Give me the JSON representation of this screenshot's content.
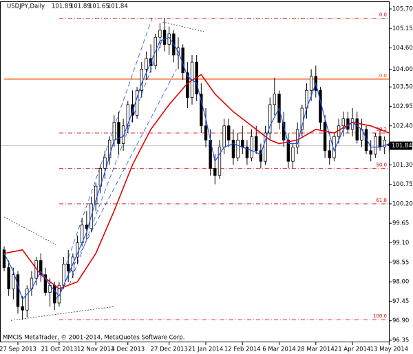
{
  "chart_data": {
    "type": "candlestick",
    "symbol": "USDJPY,Daily",
    "footer": "MMCIS MetaTrader, © 2001-2014, MetaQuotes Software Corp.",
    "xlim": [
      0,
      85
    ],
    "ylim": [
      96.35,
      105.7
    ],
    "xticks": [
      {
        "value": 3,
        "label": "27 Sep 2013"
      },
      {
        "value": 12,
        "label": "21 Oct 2013"
      },
      {
        "value": 20,
        "label": "12 Nov 2013"
      },
      {
        "value": 27,
        "label": "4 Dec 2013"
      },
      {
        "value": 36,
        "label": "27 Dec 2013"
      },
      {
        "value": 44,
        "label": "21 Jan 2014"
      },
      {
        "value": 52,
        "label": "12 Feb 2014"
      },
      {
        "value": 60,
        "label": "6 Mar 2014"
      },
      {
        "value": 68,
        "label": "28 Mar 2014"
      },
      {
        "value": 76,
        "label": "21 Apr 2014"
      },
      {
        "value": 84,
        "label": "13 May 2014"
      }
    ],
    "yticks": [
      {
        "value": 105.7,
        "label": "105.70"
      },
      105.15,
      {
        "value": 104.6,
        "label": "104.60"
      },
      {
        "value": 104,
        "label": "104.00"
      },
      {
        "value": 103.5,
        "label": "103.50"
      },
      102.95,
      {
        "value": 102.4,
        "label": "102.40"
      },
      {
        "value": 101.3,
        "label": "101.30"
      },
      100.75,
      {
        "value": 100.2,
        "label": "100.20"
      },
      99.65,
      {
        "value": 99.1,
        "label": "99.10"
      },
      98.55,
      {
        "value": 98,
        "label": "98.00"
      },
      97.45,
      {
        "value": 96.9,
        "label": "96.90"
      },
      96.35
    ],
    "bull_color": "#ffffff",
    "bear_color": "#000000",
    "candles": [
      [
        98.9,
        99.0,
        98.3,
        98.4
      ],
      [
        98.4,
        98.6,
        97.6,
        97.8
      ],
      [
        97.8,
        98.4,
        97.5,
        98.2
      ],
      [
        98.2,
        98.3,
        97.1,
        97.3
      ],
      [
        97.3,
        97.6,
        96.93,
        97.2
      ],
      [
        97.2,
        97.9,
        97.0,
        97.8
      ],
      [
        97.8,
        98.3,
        97.6,
        98.1
      ],
      [
        98.1,
        98.7,
        97.9,
        98.6
      ],
      [
        98.6,
        98.8,
        98.0,
        98.2
      ],
      [
        98.2,
        98.4,
        97.6,
        97.7
      ],
      [
        97.7,
        98.1,
        97.3,
        97.9
      ],
      [
        97.9,
        98.0,
        97.2,
        97.4
      ],
      [
        97.4,
        98.0,
        97.3,
        97.9
      ],
      [
        97.9,
        98.7,
        97.8,
        98.5
      ],
      [
        98.5,
        98.9,
        98.0,
        98.3
      ],
      [
        98.3,
        98.8,
        98.1,
        98.7
      ],
      [
        98.7,
        99.3,
        98.5,
        99.1
      ],
      [
        99.1,
        99.8,
        99.0,
        99.6
      ],
      [
        99.6,
        100.0,
        99.2,
        99.5
      ],
      [
        99.5,
        100.4,
        99.4,
        100.2
      ],
      [
        100.2,
        100.8,
        100.0,
        100.7
      ],
      [
        100.7,
        101.3,
        100.5,
        101.2
      ],
      [
        101.2,
        101.7,
        100.9,
        101.5
      ],
      [
        101.5,
        102.1,
        101.3,
        102.0
      ],
      [
        102.0,
        102.7,
        101.8,
        102.5
      ],
      [
        102.5,
        102.8,
        101.6,
        101.9
      ],
      [
        101.9,
        102.6,
        101.7,
        102.4
      ],
      [
        102.4,
        103.1,
        102.2,
        103.0
      ],
      [
        103.0,
        103.4,
        102.5,
        102.7
      ],
      [
        102.7,
        103.5,
        102.6,
        103.4
      ],
      [
        103.4,
        104.2,
        103.2,
        104.0
      ],
      [
        104.0,
        104.5,
        103.7,
        104.3
      ],
      [
        104.3,
        104.7,
        103.9,
        104.1
      ],
      [
        104.1,
        105.0,
        104.0,
        104.9
      ],
      [
        104.9,
        105.3,
        104.6,
        105.1
      ],
      [
        105.1,
        105.44,
        104.5,
        104.7
      ],
      [
        104.7,
        105.2,
        104.4,
        105.0
      ],
      [
        105.0,
        105.1,
        104.2,
        104.4
      ],
      [
        104.4,
        104.9,
        104.0,
        104.6
      ],
      [
        104.6,
        104.7,
        103.7,
        103.9
      ],
      [
        103.9,
        104.2,
        102.9,
        103.2
      ],
      [
        103.2,
        104.4,
        103.0,
        104.2
      ],
      [
        104.2,
        104.4,
        103.1,
        103.3
      ],
      [
        103.3,
        103.6,
        102.2,
        102.4
      ],
      [
        102.4,
        102.9,
        101.8,
        102.0
      ],
      [
        102.0,
        102.3,
        101.0,
        101.2
      ],
      [
        101.2,
        101.6,
        100.75,
        101.0
      ],
      [
        101.0,
        102.0,
        100.9,
        101.8
      ],
      [
        101.8,
        102.6,
        101.6,
        102.4
      ],
      [
        102.4,
        102.6,
        101.8,
        102.0
      ],
      [
        102.0,
        102.3,
        101.3,
        101.5
      ],
      [
        101.5,
        102.2,
        101.4,
        102.0
      ],
      [
        102.0,
        102.4,
        101.6,
        101.8
      ],
      [
        101.8,
        102.0,
        101.3,
        101.5
      ],
      [
        101.5,
        102.3,
        101.4,
        102.1
      ],
      [
        102.1,
        102.4,
        101.6,
        101.7
      ],
      [
        101.7,
        101.9,
        101.2,
        101.4
      ],
      [
        101.4,
        102.4,
        101.3,
        102.2
      ],
      [
        102.2,
        103.2,
        102.0,
        103.0
      ],
      [
        103.0,
        103.76,
        102.7,
        103.3
      ],
      [
        103.3,
        103.4,
        102.3,
        102.5
      ],
      [
        102.5,
        102.8,
        101.8,
        102.0
      ],
      [
        102.0,
        102.2,
        101.2,
        101.4
      ],
      [
        101.4,
        101.9,
        101.2,
        101.8
      ],
      [
        101.8,
        102.5,
        101.6,
        102.3
      ],
      [
        102.3,
        103.0,
        102.1,
        102.9
      ],
      [
        102.9,
        103.6,
        102.6,
        103.4
      ],
      [
        103.4,
        104.0,
        103.1,
        103.8
      ],
      [
        103.8,
        104.1,
        103.2,
        103.4
      ],
      [
        103.4,
        103.5,
        102.3,
        102.5
      ],
      [
        102.5,
        102.7,
        101.5,
        101.7
      ],
      [
        101.7,
        102.0,
        101.3,
        101.5
      ],
      [
        101.5,
        102.2,
        101.4,
        102.1
      ],
      [
        102.1,
        102.6,
        101.9,
        102.4
      ],
      [
        102.4,
        102.8,
        102.1,
        102.6
      ],
      [
        102.6,
        102.8,
        102.2,
        102.3
      ],
      [
        102.3,
        102.9,
        102.1,
        102.6
      ],
      [
        102.6,
        102.8,
        101.9,
        102.0
      ],
      [
        102.0,
        102.6,
        101.8,
        102.3
      ],
      [
        102.3,
        102.4,
        101.6,
        101.7
      ],
      [
        101.7,
        102.0,
        101.4,
        101.6
      ],
      [
        101.6,
        102.2,
        101.5,
        102.1
      ],
      [
        102.1,
        102.3,
        101.7,
        101.8
      ],
      [
        101.8,
        102.1,
        101.6,
        102.0
      ],
      [
        101.89,
        101.89,
        101.65,
        101.84
      ]
    ],
    "lines": [
      {
        "color": "#e00000",
        "x": [
          0,
          4,
          8,
          12,
          16,
          20,
          24,
          28,
          32,
          36,
          40,
          43,
          46,
          50,
          54,
          58,
          60,
          64,
          68,
          72,
          76,
          80,
          84
        ],
        "values": [
          98.8,
          98.9,
          98.2,
          97.8,
          98.0,
          98.8,
          100.0,
          101.3,
          102.3,
          103.0,
          103.6,
          103.85,
          103.3,
          102.8,
          102.4,
          102.0,
          101.9,
          102.0,
          102.3,
          102.2,
          102.5,
          102.4,
          102.2
        ]
      },
      {
        "color": "#1e50e6",
        "x": [
          0,
          2,
          4,
          6,
          8,
          10,
          12,
          14,
          16,
          18,
          20,
          22,
          24,
          26,
          28,
          30,
          32,
          34,
          36,
          38,
          40,
          42,
          44,
          46,
          48,
          50,
          52,
          54,
          56,
          58,
          60,
          62,
          64,
          66,
          68,
          70,
          72,
          74,
          76,
          78,
          80,
          82,
          84
        ],
        "values": [
          98.8,
          98.3,
          97.5,
          97.8,
          98.3,
          97.9,
          97.6,
          98.2,
          98.8,
          99.4,
          100.3,
          101.1,
          102.0,
          102.1,
          102.8,
          103.6,
          104.2,
          104.8,
          104.9,
          104.5,
          103.8,
          103.6,
          102.6,
          101.4,
          101.8,
          101.9,
          101.8,
          101.7,
          101.6,
          102.4,
          102.9,
          101.9,
          101.9,
          102.9,
          103.6,
          102.6,
          101.7,
          102.3,
          102.5,
          102.3,
          101.8,
          101.8,
          101.9
        ]
      }
    ],
    "levels": [
      {
        "label": "0.0",
        "price": 105.44,
        "color": "#e00000",
        "dashed": true,
        "from": 12
      },
      {
        "label": "0.0",
        "price": 103.72,
        "color": "#ff4500",
        "dashed": false,
        "from": 0
      },
      {
        "label": "38.2",
        "price": 102.2,
        "color": "#e00000",
        "dashed": true,
        "from": 12
      },
      {
        "label": "50.0",
        "price": 101.2,
        "color": "#e00000",
        "dashed": true,
        "from": 12
      },
      {
        "label": "61.8",
        "price": 100.2,
        "color": "#e00000",
        "dashed": true,
        "from": 12
      },
      {
        "label": "100.0",
        "price": 96.93,
        "color": "#e00000",
        "dashed": true,
        "from": 12
      }
    ],
    "trendlines": [
      {
        "color": "#1e50e6",
        "dashed": true,
        "points": [
          [
            13.5,
            98.47
          ],
          [
            32.3,
            105.45
          ]
        ]
      },
      {
        "color": "#1e50e6",
        "dashed": true,
        "points": [
          [
            11.3,
            97.5
          ],
          [
            37.6,
            104.0
          ]
        ]
      },
      {
        "color": "#1e50e6",
        "dashed": true,
        "points": [
          [
            14.2,
            97.9
          ],
          [
            35.0,
            105.0
          ]
        ]
      },
      {
        "color": "#333333",
        "dashed": true,
        "points": [
          [
            0,
            99.83
          ],
          [
            11.3,
            99.05
          ]
        ]
      },
      {
        "color": "#333333",
        "dashed": true,
        "points": [
          [
            1.5,
            96.91
          ],
          [
            24,
            97.3
          ]
        ]
      },
      {
        "color": "#333333",
        "dashed": true,
        "points": [
          [
            34.6,
            105.33
          ],
          [
            43.6,
            105.06
          ]
        ]
      }
    ]
  }
}
